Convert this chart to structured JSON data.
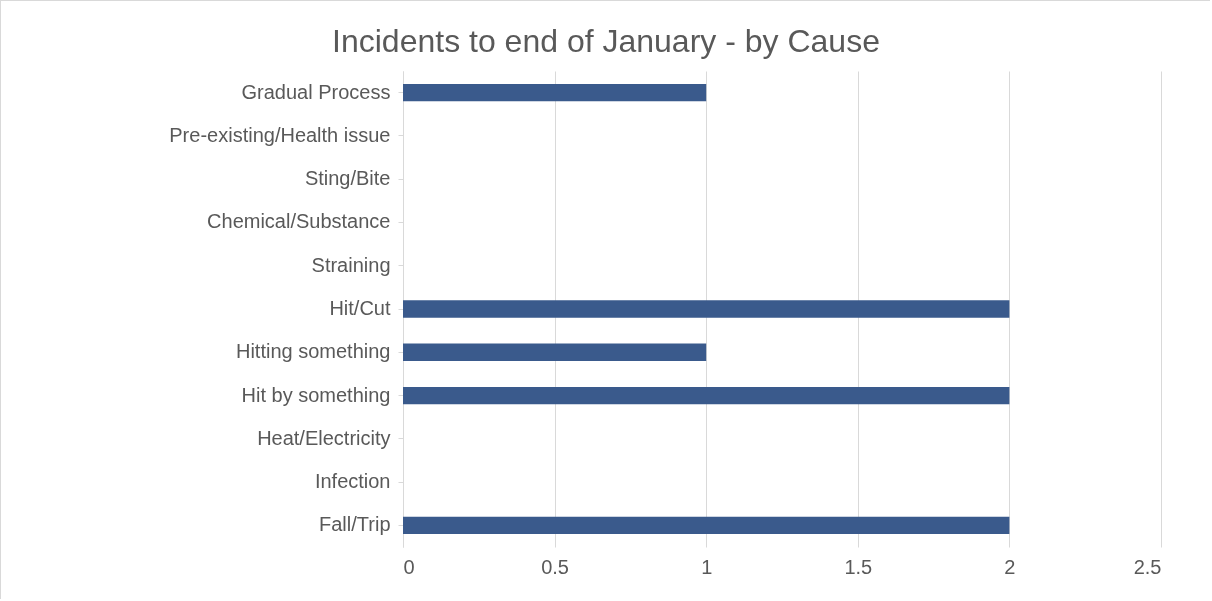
{
  "chart_data": {
    "type": "bar",
    "orientation": "horizontal",
    "title": "Incidents to end of January - by Cause",
    "categories": [
      "Gradual Process",
      "Pre-existing/Health issue",
      "Sting/Bite",
      "Chemical/Substance",
      "Straining",
      "Hit/Cut",
      "Hitting something",
      "Hit by something",
      "Heat/Electricity",
      "Infection",
      "Fall/Trip"
    ],
    "values": [
      1,
      0,
      0,
      0,
      0,
      2,
      1,
      2,
      0,
      0,
      2
    ],
    "color": "#3a5a8c",
    "xlim": [
      0,
      2.5
    ],
    "xticks": [
      0,
      0.5,
      1,
      1.5,
      2,
      2.5
    ],
    "grid": "x"
  }
}
